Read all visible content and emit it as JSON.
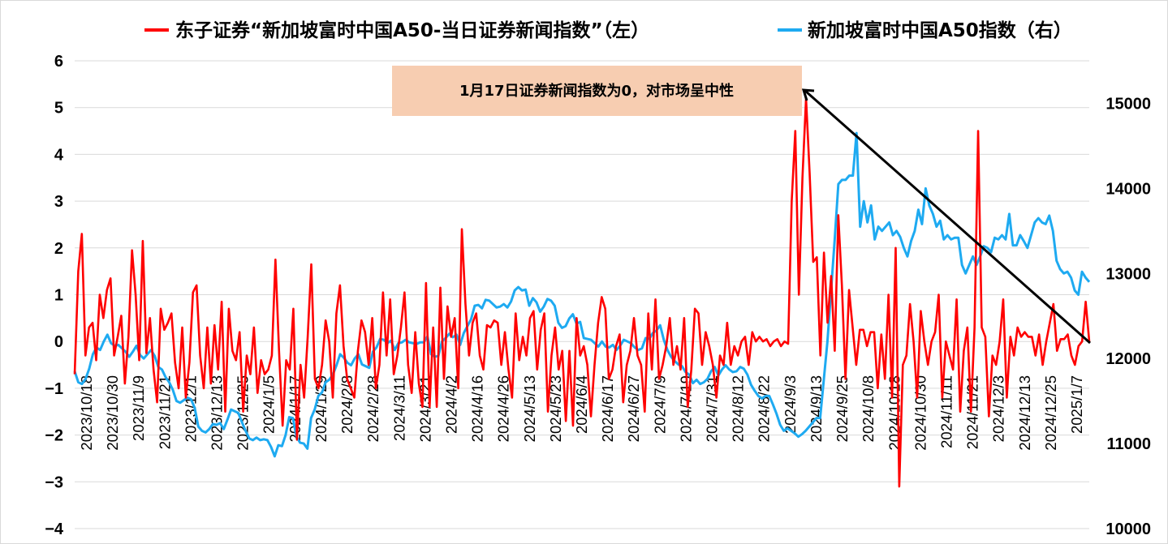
{
  "chart_data": {
    "type": "line",
    "legend": {
      "placement": "top",
      "entries": [
        {
          "label": "东子证券“新加坡富时中国A50-当日证券新闻指数”（左）",
          "color": "#ff0000"
        },
        {
          "label": "新加坡富时中国A50指数（右）",
          "color": "#1eaaf1"
        }
      ]
    },
    "axes": {
      "left": {
        "ylim": [
          -4,
          6
        ],
        "ticks": [
          "6",
          "5",
          "4",
          "3",
          "2",
          "1",
          "0",
          "−1",
          "−2",
          "−3",
          "−4"
        ]
      },
      "right": {
        "ylim": [
          10000,
          15500
        ],
        "ticks": [
          "15000",
          "14000",
          "13000",
          "12000",
          "11000",
          "10000"
        ]
      },
      "grid": "horizontal"
    },
    "x_ticks": [
      "2023/10/18",
      "2023/10/30",
      "2023/11/9",
      "2023/11/21",
      "2023/12/1",
      "2023/12/13",
      "2023/12/25",
      "2024/1/5",
      "2024/1/17",
      "2024/1/29",
      "2024/2/8",
      "2024/2/28",
      "2024/3/11",
      "2024/3/21",
      "2024/4/2",
      "2024/4/16",
      "2024/4/26",
      "2024/5/13",
      "2024/5/23",
      "2024/6/4",
      "2024/6/17",
      "2024/6/27",
      "2024/7/9",
      "2024/7/19",
      "2024/7/31",
      "2024/8/12",
      "2024/8/22",
      "2024/9/3",
      "2024/9/13",
      "2024/9/25",
      "2024/10/8",
      "2024/10/18",
      "2024/10/30",
      "2024/11/11",
      "2024/11/21",
      "2024/12/3",
      "2024/12/13",
      "2024/12/25",
      "2025/1/7"
    ],
    "series": [
      {
        "name": "东子证券“新加坡富时中国A50-当日证券新闻指数”（左）",
        "axis": "left",
        "color": "#ff0000",
        "values": [
          -0.7,
          1.5,
          2.3,
          -0.3,
          0.3,
          0.4,
          -0.4,
          1.0,
          0.5,
          1.1,
          1.35,
          -0.3,
          0.1,
          0.55,
          -0.9,
          0.1,
          1.95,
          1.0,
          -0.4,
          2.15,
          -0.25,
          0.5,
          -0.6,
          -1.3,
          0.7,
          0.25,
          0.4,
          0.6,
          -0.45,
          -1.0,
          0.3,
          -1.2,
          -0.45,
          1.05,
          1.2,
          -0.3,
          -1.0,
          0.3,
          -0.9,
          0.35,
          -0.6,
          0.85,
          -1.5,
          0.7,
          -0.2,
          -0.4,
          0.2,
          -1.5,
          -0.3,
          -0.7,
          0.3,
          -1.1,
          -0.4,
          -0.7,
          -0.6,
          -0.3,
          1.75,
          -0.2,
          -1.8,
          -0.4,
          -0.6,
          0.7,
          -2.1,
          -0.5,
          -1.2,
          0.1,
          1.65,
          -0.8,
          -1.0,
          -0.5,
          0.45,
          0.0,
          -1.2,
          0.6,
          1.2,
          -0.1,
          -0.8,
          -1.0,
          -1.2,
          -0.2,
          0.45,
          0.2,
          -0.5,
          0.5,
          -1.0,
          -0.5,
          1.05,
          -0.3,
          0.9,
          -0.7,
          -0.3,
          0.3,
          1.05,
          -0.5,
          -1.1,
          0.2,
          -0.9,
          -1.4,
          1.25,
          -1.4,
          0.3,
          -1.4,
          1.15,
          -0.8,
          0.75,
          0.1,
          0.5,
          -1.0,
          2.4,
          0.8,
          -0.3,
          0.4,
          0.6,
          -0.3,
          -0.6,
          0.35,
          0.3,
          0.45,
          0.4,
          -0.5,
          0.2,
          -0.6,
          -1.2,
          0.6,
          -0.4,
          0.1,
          -0.3,
          0.5,
          0.65,
          -0.6,
          0.25,
          0.6,
          -1.5,
          -0.3,
          0.3,
          -0.6,
          -0.2,
          -1.7,
          -0.2,
          -1.8,
          0.5,
          -0.3,
          -0.1,
          -0.5,
          -1.6,
          -0.5,
          0.4,
          0.95,
          0.7,
          -0.8,
          -0.6,
          -0.1,
          0.15,
          -1.3,
          -0.5,
          -0.2,
          0.5,
          -0.3,
          -0.5,
          -1.5,
          0.6,
          -0.6,
          0.9,
          -0.8,
          -0.5,
          -0.1,
          0.5,
          -0.5,
          -0.1,
          -0.6,
          0.5,
          -1.4,
          -0.6,
          0.7,
          0.6,
          -0.5,
          0.2,
          -0.1,
          -0.5,
          -1.2,
          -0.3,
          -0.5,
          0.4,
          -0.5,
          -0.1,
          -0.3,
          0.0,
          0.1,
          -0.5,
          0.2,
          0.0,
          0.1,
          0.0,
          0.05,
          -0.1,
          0.0,
          0.05,
          -0.1,
          0.0,
          -0.05,
          3.0,
          4.5,
          1.0,
          3.5,
          5.2,
          3.6,
          1.7,
          1.8,
          -0.3,
          1.9,
          0.4,
          1.4,
          -0.2,
          2.7,
          1.2,
          -0.8,
          1.1,
          0.3,
          -0.5,
          0.25,
          0.25,
          -0.1,
          0.2,
          0.2,
          -1.0,
          0.15,
          -0.8,
          1.0,
          -1.2,
          2.0,
          -3.1,
          -0.5,
          -0.3,
          0.8,
          0.0,
          -1.2,
          0.65,
          0.0,
          -0.5,
          0.0,
          0.2,
          1.0,
          -1.2,
          0.0,
          -0.3,
          -0.6,
          0.9,
          -1.5,
          -0.2,
          0.3,
          -1.5,
          0.3,
          4.5,
          0.3,
          0.1,
          -1.6,
          -0.3,
          -0.5,
          0.0,
          0.9,
          -1.2,
          0.1,
          -0.3,
          0.3,
          0.1,
          0.2,
          0.1,
          0.1,
          -0.3,
          0.15,
          -0.5,
          0.0,
          0.4,
          0.8,
          -0.2,
          0.05,
          0.05,
          0.15,
          -0.3,
          -0.5,
          -0.1,
          0.0,
          0.85,
          0.0
        ]
      },
      {
        "name": "新加坡富时中国A50指数（右）",
        "axis": "right",
        "color": "#1eaaf1",
        "values": [
          11850,
          11720,
          11700,
          11760,
          11880,
          12050,
          12130,
          12100,
          12200,
          12280,
          12180,
          12150,
          12160,
          12120,
          12080,
          12020,
          12080,
          12150,
          12040,
          12000,
          12050,
          12100,
          12030,
          11900,
          11870,
          11780,
          11720,
          11630,
          11500,
          11480,
          11510,
          11540,
          11520,
          11420,
          11200,
          11150,
          11130,
          11170,
          11230,
          11220,
          11240,
          11170,
          11280,
          11400,
          11380,
          11360,
          11250,
          11150,
          11060,
          11040,
          11070,
          11040,
          11050,
          11040,
          10960,
          10850,
          10980,
          10970,
          11100,
          11310,
          11300,
          11080,
          11010,
          11000,
          10940,
          11300,
          11400,
          11560,
          11600,
          11720,
          11750,
          11810,
          11920,
          12050,
          12010,
          11950,
          11920,
          12000,
          12050,
          11930,
          11910,
          11890,
          12080,
          12130,
          12230,
          12220,
          12180,
          12210,
          12100,
          12180,
          12190,
          12220,
          12190,
          12180,
          12170,
          12190,
          12190,
          12260,
          12050,
          12020,
          12030,
          12200,
          12240,
          12290,
          12250,
          12280,
          12160,
          12300,
          12380,
          12460,
          12620,
          12630,
          12590,
          12690,
          12680,
          12640,
          12600,
          12610,
          12640,
          12600,
          12670,
          12800,
          12840,
          12800,
          12810,
          12620,
          12710,
          12660,
          12550,
          12610,
          12700,
          12680,
          12620,
          12420,
          12360,
          12380,
          12470,
          12520,
          12410,
          12430,
          12240,
          12230,
          12220,
          12180,
          12140,
          12200,
          12140,
          12130,
          12160,
          12100,
          12150,
          12220,
          12200,
          12180,
          12130,
          12100,
          12120,
          12240,
          12230,
          12300,
          12330,
          12390,
          12220,
          12100,
          12020,
          11970,
          11930,
          11910,
          11840,
          11810,
          11710,
          11750,
          11700,
          11720,
          11760,
          11850,
          11900,
          11800,
          11870,
          11920,
          11870,
          11840,
          11850,
          11900,
          11880,
          11810,
          11690,
          11620,
          11560,
          11530,
          11560,
          11560,
          11460,
          11350,
          11220,
          11150,
          11180,
          11150,
          11120,
          11080,
          11110,
          11150,
          11200,
          11250,
          11300,
          11300,
          11750,
          12200,
          12800,
          13400,
          14050,
          14100,
          14100,
          14150,
          14150,
          14650,
          13550,
          13850,
          13600,
          13800,
          13400,
          13550,
          13500,
          13550,
          13600,
          13450,
          13500,
          13430,
          13300,
          13200,
          13380,
          13500,
          13750,
          13580,
          14000,
          13800,
          13700,
          13550,
          13620,
          13400,
          13450,
          13400,
          13420,
          13420,
          13100,
          13000,
          13100,
          13200,
          13100,
          13200,
          13320,
          13300,
          13250,
          13420,
          13400,
          13450,
          13400,
          13700,
          13330,
          13330,
          13450,
          13380,
          13300,
          13450,
          13600,
          13650,
          13600,
          13580,
          13680,
          13500,
          13150,
          13050,
          13000,
          13020,
          12950,
          12800,
          12750,
          13020,
          12950,
          12900
        ]
      }
    ],
    "annotation": {
      "text": "1月17日证券新闻指数为0，对市场呈中性",
      "box_color": "#f7cdb1",
      "arrow_color": "#000000"
    }
  }
}
